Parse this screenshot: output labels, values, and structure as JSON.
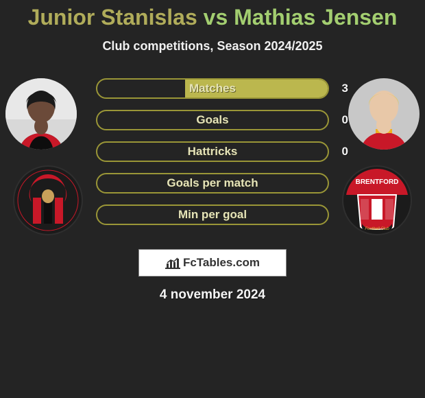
{
  "title": {
    "player1": "Junior Stanislas",
    "vs": "vs",
    "player2": "Mathias Jensen",
    "player1_color": "#b0ac5a",
    "vs_color": "#a3ce70",
    "player2_color": "#a3ce70"
  },
  "subtitle": "Club competitions, Season 2024/2025",
  "colors": {
    "page_bg": "#242424",
    "bar_outline": "#9a9637",
    "bar_fill": "#bbb74e",
    "bar_label": "#e6e4b8"
  },
  "stats": [
    {
      "label": "Matches",
      "left_val": "",
      "right_val": "3",
      "left_pct": 0,
      "right_pct": 62
    },
    {
      "label": "Goals",
      "left_val": "",
      "right_val": "0",
      "left_pct": 0,
      "right_pct": 0
    },
    {
      "label": "Hattricks",
      "left_val": "",
      "right_val": "0",
      "left_pct": 0,
      "right_pct": 0
    },
    {
      "label": "Goals per match",
      "left_val": "",
      "right_val": "",
      "left_pct": 0,
      "right_pct": 0
    },
    {
      "label": "Min per goal",
      "left_val": "",
      "right_val": "",
      "left_pct": 0,
      "right_pct": 0
    }
  ],
  "player_left": {
    "name_key": "junior-stanislas",
    "photo_bg": "#2a2a2a",
    "skin": "#6b4a39",
    "kit_primary": "#c81828",
    "kit_stripe": "#0d0d0d",
    "club_name_key": "afc-bournemouth",
    "club_bg": "#1b1b1b",
    "club_primary": "#c81828",
    "club_secondary": "#0d0d0d"
  },
  "player_right": {
    "name_key": "mathias-jensen",
    "photo_bg": "#3a3a3a",
    "skin": "#e8c8a8",
    "hair": "#e0c87a",
    "kit_primary": "#c81828",
    "kit_collar": "#f0b020",
    "club_name_key": "brentford",
    "club_bg": "#1b1b1b",
    "club_primary": "#c81828",
    "club_secondary": "#ffffff",
    "club_text": "BRENTFORD"
  },
  "badge_text": "FcTables.com",
  "generated_date": "4 november 2024"
}
